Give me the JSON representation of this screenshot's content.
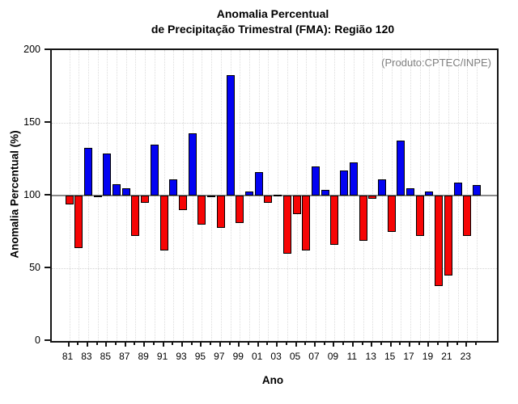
{
  "title": {
    "line1": "Anomalia Percentual",
    "line2": "de Precipitação Trimestral (FMA): Região 120"
  },
  "annotation": "(Produto:CPTEC/INPE)",
  "chart_data": {
    "type": "bar",
    "title": "Anomalia Percentual de Precipitação Trimestral (FMA): Região 120",
    "xlabel": "Ano",
    "ylabel": "Anomalia Percentual (%)",
    "ylim": [
      0,
      200
    ],
    "yticks": [
      0,
      50,
      100,
      150,
      200
    ],
    "baseline": 100,
    "grid": "dotted",
    "legend": null,
    "categories": [
      "81",
      "82",
      "83",
      "84",
      "85",
      "86",
      "87",
      "88",
      "89",
      "90",
      "91",
      "92",
      "93",
      "94",
      "95",
      "96",
      "97",
      "98",
      "99",
      "00",
      "01",
      "02",
      "03",
      "04",
      "05",
      "06",
      "07",
      "08",
      "09",
      "10",
      "11",
      "12",
      "13",
      "14",
      "15",
      "16",
      "17",
      "18",
      "19",
      "20",
      "21",
      "22",
      "23",
      "24"
    ],
    "x_labeled_ticks": [
      "81",
      "83",
      "85",
      "87",
      "89",
      "91",
      "93",
      "95",
      "97",
      "99",
      "01",
      "03",
      "05",
      "07",
      "09",
      "11",
      "13",
      "15",
      "17",
      "19",
      "21",
      "23"
    ],
    "values": [
      94,
      64,
      133,
      99,
      129,
      108,
      105,
      72,
      95,
      135,
      62,
      111,
      90,
      143,
      80,
      99,
      78,
      183,
      81,
      103,
      116,
      95,
      100,
      60,
      87,
      62,
      120,
      104,
      66,
      117,
      123,
      69,
      98,
      111,
      75,
      138,
      105,
      72,
      103,
      38,
      45,
      109,
      72,
      107
    ],
    "colors": {
      "above_baseline": "#0303f2",
      "below_baseline": "#f60505",
      "bar_outline": "#000000",
      "baseline_line": "#8a8a8a",
      "annotation_text": "#808080"
    }
  }
}
